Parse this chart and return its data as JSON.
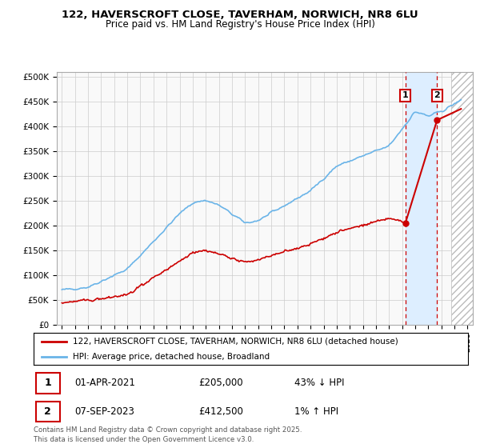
{
  "title1": "122, HAVERSCROFT CLOSE, TAVERHAM, NORWICH, NR8 6LU",
  "title2": "Price paid vs. HM Land Registry's House Price Index (HPI)",
  "ylabel_ticks": [
    "£0",
    "£50K",
    "£100K",
    "£150K",
    "£200K",
    "£250K",
    "£300K",
    "£350K",
    "£400K",
    "£450K",
    "£500K"
  ],
  "ytick_values": [
    0,
    50000,
    100000,
    150000,
    200000,
    250000,
    300000,
    350000,
    400000,
    450000,
    500000
  ],
  "xlim_min": 1994.6,
  "xlim_max": 2026.4,
  "ylim_min": 0,
  "ylim_max": 510000,
  "sale1_date": 2021.25,
  "sale1_price": 205000,
  "sale2_date": 2023.67,
  "sale2_price": 412500,
  "legend_line1_label": "122, HAVERSCROFT CLOSE, TAVERHAM, NORWICH, NR8 6LU (detached house)",
  "legend_line2_label": "HPI: Average price, detached house, Broadland",
  "table_row1": [
    "1",
    "01-APR-2021",
    "£205,000",
    "43% ↓ HPI"
  ],
  "table_row2": [
    "2",
    "07-SEP-2023",
    "£412,500",
    "1% ↑ HPI"
  ],
  "footer": "Contains HM Land Registry data © Crown copyright and database right 2025.\nThis data is licensed under the Open Government Licence v3.0.",
  "hpi_color": "#6ab4e8",
  "price_color": "#cc0000",
  "shade_color": "#ddeeff",
  "hatch_fill_color": "#e8e8e8",
  "grid_color": "#cccccc",
  "bg_color": "#f9f9f9"
}
